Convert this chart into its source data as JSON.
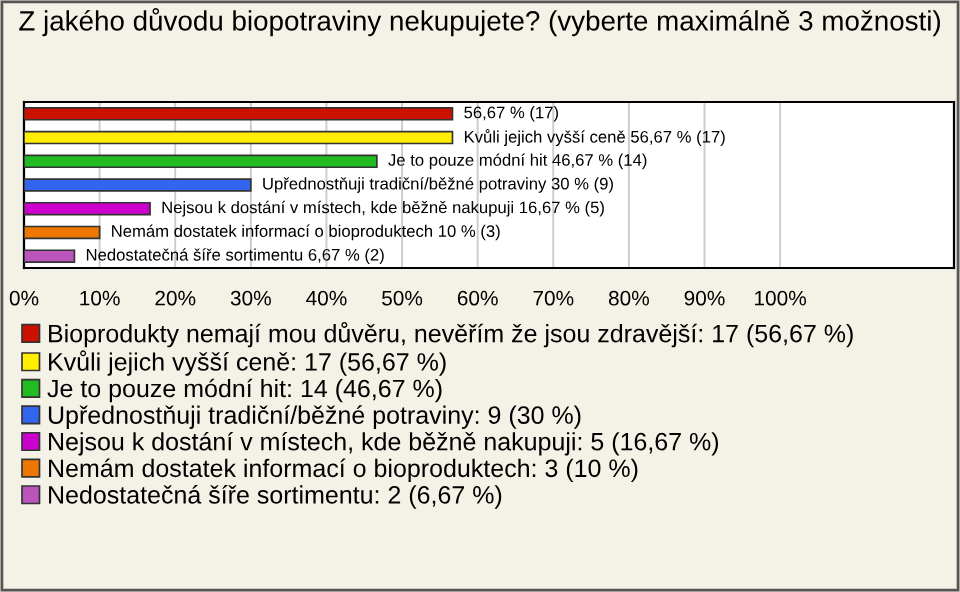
{
  "chart_data": {
    "type": "bar",
    "orientation": "horizontal",
    "stacked": true,
    "title": "Z jakého důvodu biopotraviny nekupujete? (vyberte maximálně 3 možnosti)",
    "categories": [
      null,
      null,
      null,
      null,
      null,
      null,
      null
    ],
    "series": [
      {
        "name": "Bioprodukty nemají mou důvěru, nevěřím že jsou zdravější: 17 (56,67 %)",
        "color": "#cc1100",
        "values": [
          56.67,
          null,
          null,
          null,
          null,
          null,
          null
        ],
        "value_labels": [
          "56,67 % (17)",
          null,
          null,
          null,
          null,
          null,
          null
        ]
      },
      {
        "name": "Kvůli jejich vyšší ceně: 17 (56,67 %)",
        "color": "#ffee00",
        "values": [
          null,
          56.67,
          null,
          null,
          null,
          null,
          null
        ],
        "value_labels": [
          null,
          "Kvůli jejich vyšší ceně 56,67 % (17)",
          null,
          null,
          null,
          null,
          null
        ]
      },
      {
        "name": "Je to pouze módní hit: 14 (46,67 %)",
        "color": "#22bb22",
        "values": [
          null,
          null,
          46.67,
          null,
          null,
          null,
          null
        ],
        "value_labels": [
          null,
          null,
          "Je to pouze módní hit 46,67 % (14)",
          null,
          null,
          null,
          null
        ]
      },
      {
        "name": "Upřednostňuji tradiční/běžné potraviny: 9 (30 %)",
        "color": "#3366ee",
        "values": [
          null,
          null,
          null,
          30,
          null,
          null,
          null
        ],
        "value_labels": [
          null,
          null,
          null,
          "Upřednostňuji tradiční/běžné potraviny 30 % (9)",
          null,
          null,
          null
        ]
      },
      {
        "name": "Nejsou k dostání v místech, kde běžně nakupuji: 5 (16,67 %)",
        "color": "#cc00cc",
        "values": [
          null,
          null,
          null,
          null,
          16.67,
          null,
          null
        ],
        "value_labels": [
          null,
          null,
          null,
          null,
          "Nejsou k dostání v místech, kde běžně nakupuji 16,67 % (5)",
          null,
          null
        ]
      },
      {
        "name": "Nemám dostatek informací o bioproduktech: 3 (10 %)",
        "color": "#ee7700",
        "values": [
          null,
          null,
          null,
          null,
          null,
          10,
          null
        ],
        "value_labels": [
          null,
          null,
          null,
          null,
          null,
          "Nemám dostatek informací o bioproduktech 10 % (3)",
          null
        ]
      },
      {
        "name": "Nedostatečná šíře sortimentu: 2 (6,67 %)",
        "color": "#bb55bb",
        "values": [
          null,
          null,
          null,
          null,
          null,
          null,
          6.67
        ],
        "value_labels": [
          null,
          null,
          null,
          null,
          null,
          null,
          "Nedostatečná šíře sortimentu 6,67 % (2)"
        ]
      }
    ],
    "xlim": [
      0,
      123
    ],
    "xticks": [
      {
        "value": 0,
        "label": "0%"
      },
      {
        "value": 10,
        "label": "10%"
      },
      {
        "value": 20,
        "label": "20%"
      },
      {
        "value": 30,
        "label": "30%"
      },
      {
        "value": 40,
        "label": "40%"
      },
      {
        "value": 50,
        "label": "50%"
      },
      {
        "value": 60,
        "label": "60%"
      },
      {
        "value": 70,
        "label": "70%"
      },
      {
        "value": 80,
        "label": "80%"
      },
      {
        "value": 90,
        "label": "90%"
      },
      {
        "value": 100,
        "label": "100%"
      }
    ],
    "grid": "x",
    "legend": "bottom"
  }
}
